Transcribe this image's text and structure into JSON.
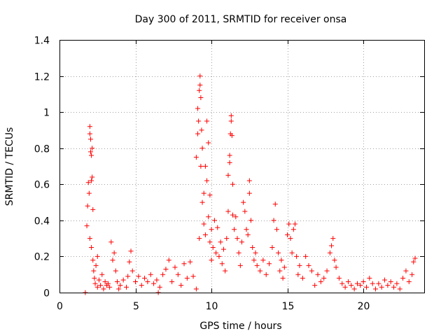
{
  "chart_data": {
    "type": "scatter",
    "title": "Day 300 of 2011, SRMTID for receiver onsa",
    "xlabel": "GPS time / hours",
    "ylabel": "SRMTID / TECUs",
    "xlim": [
      0,
      24
    ],
    "ylim": [
      0,
      1.4
    ],
    "xticks": [
      0,
      5,
      10,
      15,
      20
    ],
    "yticks": [
      0,
      0.2,
      0.4,
      0.6,
      0.8,
      1,
      1.2,
      1.4
    ],
    "xtick_labels": [
      "0",
      "5",
      "10",
      "15",
      "20"
    ],
    "ytick_labels": [
      "0",
      "0.2",
      "0.4",
      "0.6",
      "0.8",
      "1",
      "1.2",
      "1.4"
    ],
    "grid": true,
    "marker": "+",
    "series_color": "#ff0000",
    "series": [
      {
        "name": "SRMTID",
        "points": [
          [
            1.7,
            0.0
          ],
          [
            1.8,
            0.37
          ],
          [
            1.85,
            0.48
          ],
          [
            1.9,
            0.61
          ],
          [
            1.95,
            0.55
          ],
          [
            2.0,
            0.88
          ],
          [
            2.0,
            0.92
          ],
          [
            2.05,
            0.85
          ],
          [
            2.05,
            0.78
          ],
          [
            2.1,
            0.62
          ],
          [
            2.1,
            0.76
          ],
          [
            2.15,
            0.8
          ],
          [
            2.15,
            0.64
          ],
          [
            2.2,
            0.46
          ],
          [
            2.0,
            0.3
          ],
          [
            2.1,
            0.25
          ],
          [
            2.2,
            0.18
          ],
          [
            2.25,
            0.12
          ],
          [
            2.3,
            0.08
          ],
          [
            2.35,
            0.05
          ],
          [
            2.4,
            0.15
          ],
          [
            2.5,
            0.2
          ],
          [
            2.5,
            0.03
          ],
          [
            2.6,
            0.07
          ],
          [
            2.7,
            0.04
          ],
          [
            2.8,
            0.1
          ],
          [
            2.9,
            0.02
          ],
          [
            3.0,
            0.06
          ],
          [
            3.1,
            0.04
          ],
          [
            3.2,
            0.05
          ],
          [
            3.3,
            0.03
          ],
          [
            3.4,
            0.28
          ],
          [
            3.5,
            0.18
          ],
          [
            3.6,
            0.22
          ],
          [
            3.7,
            0.12
          ],
          [
            3.8,
            0.06
          ],
          [
            3.9,
            0.02
          ],
          [
            4.0,
            0.04
          ],
          [
            4.2,
            0.07
          ],
          [
            4.4,
            0.03
          ],
          [
            4.5,
            0.09
          ],
          [
            4.6,
            0.17
          ],
          [
            4.7,
            0.23
          ],
          [
            4.8,
            0.12
          ],
          [
            5.0,
            0.06
          ],
          [
            5.2,
            0.09
          ],
          [
            5.4,
            0.04
          ],
          [
            5.6,
            0.08
          ],
          [
            5.8,
            0.06
          ],
          [
            6.0,
            0.1
          ],
          [
            6.2,
            0.05
          ],
          [
            6.4,
            0.07
          ],
          [
            6.5,
            0.0
          ],
          [
            6.6,
            0.03
          ],
          [
            6.8,
            0.1
          ],
          [
            7.0,
            0.13
          ],
          [
            7.2,
            0.18
          ],
          [
            7.4,
            0.06
          ],
          [
            7.6,
            0.14
          ],
          [
            7.8,
            0.1
          ],
          [
            8.0,
            0.04
          ],
          [
            8.2,
            0.16
          ],
          [
            8.4,
            0.08
          ],
          [
            8.6,
            0.17
          ],
          [
            8.8,
            0.09
          ],
          [
            9.0,
            0.02
          ],
          [
            9.0,
            0.75
          ],
          [
            9.1,
            1.02
          ],
          [
            9.1,
            0.88
          ],
          [
            9.15,
            0.95
          ],
          [
            9.2,
            0.3
          ],
          [
            9.2,
            1.12
          ],
          [
            9.25,
            1.2
          ],
          [
            9.25,
            1.15
          ],
          [
            9.3,
            1.08
          ],
          [
            9.3,
            0.7
          ],
          [
            9.35,
            0.9
          ],
          [
            9.4,
            0.5
          ],
          [
            9.4,
            0.8
          ],
          [
            9.5,
            0.55
          ],
          [
            9.5,
            0.38
          ],
          [
            9.6,
            0.7
          ],
          [
            9.6,
            0.32
          ],
          [
            9.7,
            0.95
          ],
          [
            9.7,
            0.62
          ],
          [
            9.8,
            0.83
          ],
          [
            9.8,
            0.42
          ],
          [
            9.9,
            0.54
          ],
          [
            9.9,
            0.28
          ],
          [
            10.0,
            0.35
          ],
          [
            10.0,
            0.18
          ],
          [
            10.1,
            0.25
          ],
          [
            10.2,
            0.4
          ],
          [
            10.3,
            0.22
          ],
          [
            10.4,
            0.36
          ],
          [
            10.5,
            0.2
          ],
          [
            10.6,
            0.28
          ],
          [
            10.7,
            0.16
          ],
          [
            10.8,
            0.24
          ],
          [
            10.9,
            0.12
          ],
          [
            11.0,
            0.3
          ],
          [
            11.1,
            0.45
          ],
          [
            11.1,
            0.65
          ],
          [
            11.2,
            0.76
          ],
          [
            11.2,
            0.72
          ],
          [
            11.25,
            0.88
          ],
          [
            11.3,
            0.98
          ],
          [
            11.3,
            0.95
          ],
          [
            11.35,
            0.87
          ],
          [
            11.4,
            0.6
          ],
          [
            11.4,
            0.43
          ],
          [
            11.5,
            0.35
          ],
          [
            11.6,
            0.42
          ],
          [
            11.7,
            0.3
          ],
          [
            11.8,
            0.22
          ],
          [
            11.9,
            0.15
          ],
          [
            12.0,
            0.28
          ],
          [
            12.1,
            0.5
          ],
          [
            12.2,
            0.45
          ],
          [
            12.3,
            0.35
          ],
          [
            12.4,
            0.32
          ],
          [
            12.5,
            0.55
          ],
          [
            12.5,
            0.62
          ],
          [
            12.6,
            0.4
          ],
          [
            12.7,
            0.25
          ],
          [
            12.8,
            0.18
          ],
          [
            12.9,
            0.22
          ],
          [
            13.0,
            0.15
          ],
          [
            13.2,
            0.12
          ],
          [
            13.4,
            0.18
          ],
          [
            13.6,
            0.1
          ],
          [
            13.8,
            0.16
          ],
          [
            14.0,
            0.25
          ],
          [
            14.1,
            0.4
          ],
          [
            14.2,
            0.49
          ],
          [
            14.3,
            0.35
          ],
          [
            14.4,
            0.22
          ],
          [
            14.5,
            0.12
          ],
          [
            14.6,
            0.18
          ],
          [
            14.7,
            0.08
          ],
          [
            14.8,
            0.14
          ],
          [
            15.0,
            0.32
          ],
          [
            15.1,
            0.38
          ],
          [
            15.2,
            0.3
          ],
          [
            15.3,
            0.22
          ],
          [
            15.4,
            0.35
          ],
          [
            15.5,
            0.38
          ],
          [
            15.6,
            0.2
          ],
          [
            15.7,
            0.1
          ],
          [
            15.8,
            0.15
          ],
          [
            16.0,
            0.08
          ],
          [
            16.2,
            0.2
          ],
          [
            16.4,
            0.15
          ],
          [
            16.6,
            0.12
          ],
          [
            16.8,
            0.04
          ],
          [
            17.0,
            0.1
          ],
          [
            17.2,
            0.06
          ],
          [
            17.4,
            0.08
          ],
          [
            17.6,
            0.12
          ],
          [
            17.8,
            0.22
          ],
          [
            17.9,
            0.26
          ],
          [
            18.0,
            0.3
          ],
          [
            18.1,
            0.18
          ],
          [
            18.2,
            0.14
          ],
          [
            18.4,
            0.08
          ],
          [
            18.6,
            0.05
          ],
          [
            18.8,
            0.03
          ],
          [
            19.0,
            0.06
          ],
          [
            19.2,
            0.04
          ],
          [
            19.4,
            0.02
          ],
          [
            19.6,
            0.05
          ],
          [
            19.8,
            0.04
          ],
          [
            20.0,
            0.06
          ],
          [
            20.2,
            0.03
          ],
          [
            20.4,
            0.08
          ],
          [
            20.6,
            0.05
          ],
          [
            20.8,
            0.02
          ],
          [
            21.0,
            0.05
          ],
          [
            21.2,
            0.03
          ],
          [
            21.4,
            0.07
          ],
          [
            21.6,
            0.04
          ],
          [
            21.8,
            0.06
          ],
          [
            22.0,
            0.03
          ],
          [
            22.2,
            0.05
          ],
          [
            22.4,
            0.02
          ],
          [
            22.6,
            0.08
          ],
          [
            22.8,
            0.12
          ],
          [
            23.0,
            0.06
          ],
          [
            23.2,
            0.1
          ],
          [
            23.3,
            0.17
          ],
          [
            23.4,
            0.19
          ]
        ]
      }
    ]
  }
}
